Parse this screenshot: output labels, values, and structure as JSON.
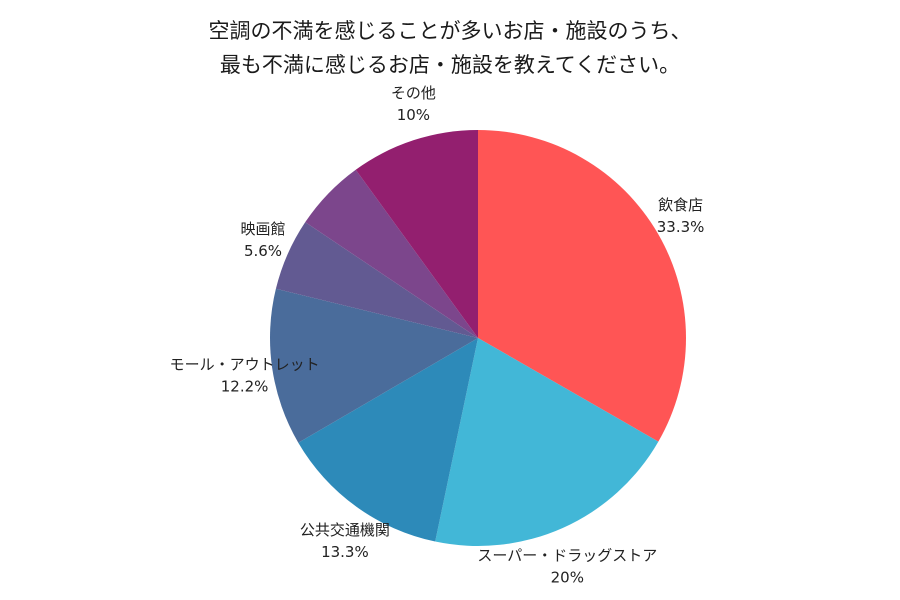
{
  "title_lines": [
    "空調の不満を感じることが多いお店・施設のうち、",
    "最も不満に感じるお店・施設を教えてください。"
  ],
  "chart_data": {
    "type": "pie",
    "title": "空調の不満を感じることが多いお店・施設のうち、最も不満に感じるお店・施設を教えてください。",
    "start_angle": "12 o'clock",
    "direction": "clockwise",
    "slices": [
      {
        "label": "飲食店",
        "value": 33.3,
        "value_label": "33.3%",
        "color": "#FF5555"
      },
      {
        "label": "スーパー・ドラッグストア",
        "value": 20,
        "value_label": "20%",
        "color": "#42B7D7"
      },
      {
        "label": "公共交通機関",
        "value": 13.3,
        "value_label": "13.3%",
        "color": "#2D8AB9"
      },
      {
        "label": "モール・アウトレット",
        "value": 12.2,
        "value_label": "12.2%",
        "color": "#4A6C9B"
      },
      {
        "label": "映画館",
        "value": 5.6,
        "value_label": "5.6%",
        "color": "#625A92"
      },
      {
        "label": "その他",
        "value": 5.6,
        "value_label": "",
        "color": "#7C468C"
      },
      {
        "label": "その他",
        "value": 10,
        "value_label": "10%",
        "color": "#931F6F"
      }
    ]
  }
}
